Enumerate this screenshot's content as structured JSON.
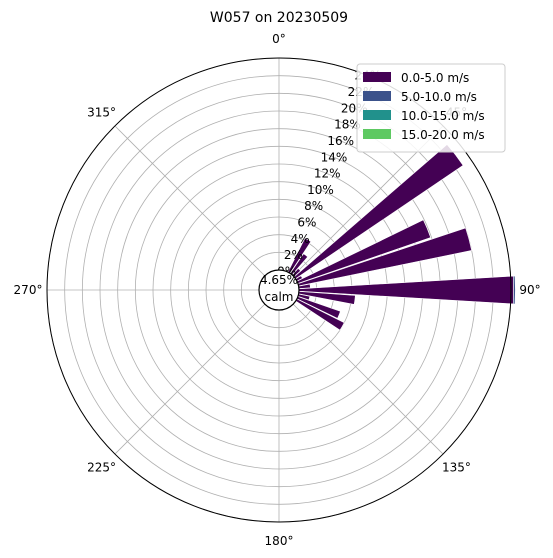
{
  "chart_data": {
    "type": "windrose",
    "title": "W057 on 20230509",
    "angle_ticks": [
      "0°",
      "45°",
      "90°",
      "135°",
      "180°",
      "225°",
      "270°",
      "315°"
    ],
    "radial_ticks": [
      "0%",
      "2%",
      "4%",
      "6%",
      "8%",
      "10%",
      "12%",
      "14%",
      "16%",
      "18%",
      "20%",
      "22%",
      "24%"
    ],
    "radial_max": 24,
    "calm_percent": "4.65%",
    "calm_label": "calm",
    "direction_unit": "degrees",
    "grid": true,
    "legend_position": "top-right",
    "legend": [
      {
        "label": "0.0-5.0 m/s",
        "color": "#440154"
      },
      {
        "label": "5.0-10.0 m/s",
        "color": "#3b528b"
      },
      {
        "label": "10.0-15.0 m/s",
        "color": "#21918c"
      },
      {
        "label": "15.0-20.0 m/s",
        "color": "#5ec962"
      }
    ],
    "series": [
      {
        "name": "0.0-5.0 m/s",
        "color": "#440154",
        "bars": [
          {
            "direction": 30,
            "value": 4.3
          },
          {
            "direction": 37.5,
            "value": 2.7
          },
          {
            "direction": 45,
            "value": 1.0
          },
          {
            "direction": 52.5,
            "value": 22.9
          },
          {
            "direction": 60,
            "value": 0.7
          },
          {
            "direction": 67.5,
            "value": 15.9
          },
          {
            "direction": 75,
            "value": 20.0
          },
          {
            "direction": 82.5,
            "value": 1.3
          },
          {
            "direction": 90,
            "value": 24.3
          },
          {
            "direction": 97.5,
            "value": 6.4
          },
          {
            "direction": 105,
            "value": 1.3
          },
          {
            "direction": 112.5,
            "value": 5.1
          },
          {
            "direction": 120,
            "value": 6.0
          }
        ]
      },
      {
        "name": "5.0-10.0 m/s",
        "color": "#3b528b",
        "bars": [
          {
            "direction": 90,
            "value": 0.2
          }
        ]
      }
    ]
  }
}
